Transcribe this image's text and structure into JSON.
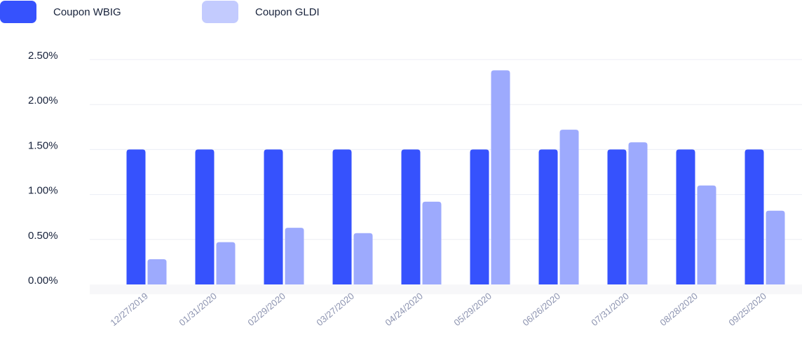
{
  "chart_data": {
    "type": "bar",
    "title": "",
    "xlabel": "",
    "ylabel": "",
    "ylim": [
      0,
      2.5
    ],
    "y_tick_values": [
      0,
      0.5,
      1.0,
      1.5,
      2.0,
      2.5
    ],
    "y_tick_labels": [
      "0.00%",
      "0.50%",
      "1.00%",
      "1.50%",
      "2.00%",
      "2.50%"
    ],
    "grid": true,
    "legend_position": "top-left",
    "categories": [
      "12/27/2019",
      "01/31/2020",
      "02/29/2020",
      "03/27/2020",
      "04/24/2020",
      "05/29/2020",
      "06/26/2020",
      "07/31/2020",
      "08/28/2020",
      "09/25/2020"
    ],
    "series": [
      {
        "name": "Coupon WBIG",
        "color": "#3652fd",
        "values": [
          1.5,
          1.5,
          1.5,
          1.5,
          1.5,
          1.5,
          1.5,
          1.5,
          1.5,
          1.5
        ]
      },
      {
        "name": "Coupon GLDI",
        "color": "#9daafd",
        "values": [
          0.28,
          0.47,
          0.63,
          0.57,
          0.92,
          2.38,
          1.72,
          1.58,
          1.1,
          0.82
        ]
      }
    ]
  },
  "legend": {
    "items": [
      {
        "label": "Coupon WBIG",
        "color": "#3652fd"
      },
      {
        "label": "Coupon GLDI",
        "color": "#c3cbfe"
      }
    ]
  },
  "colors": {
    "grid": "#eceef4",
    "axis_text": "#17223b",
    "x_tick_text": "#8c93b0",
    "baseline_band": "#f7f7f9"
  }
}
